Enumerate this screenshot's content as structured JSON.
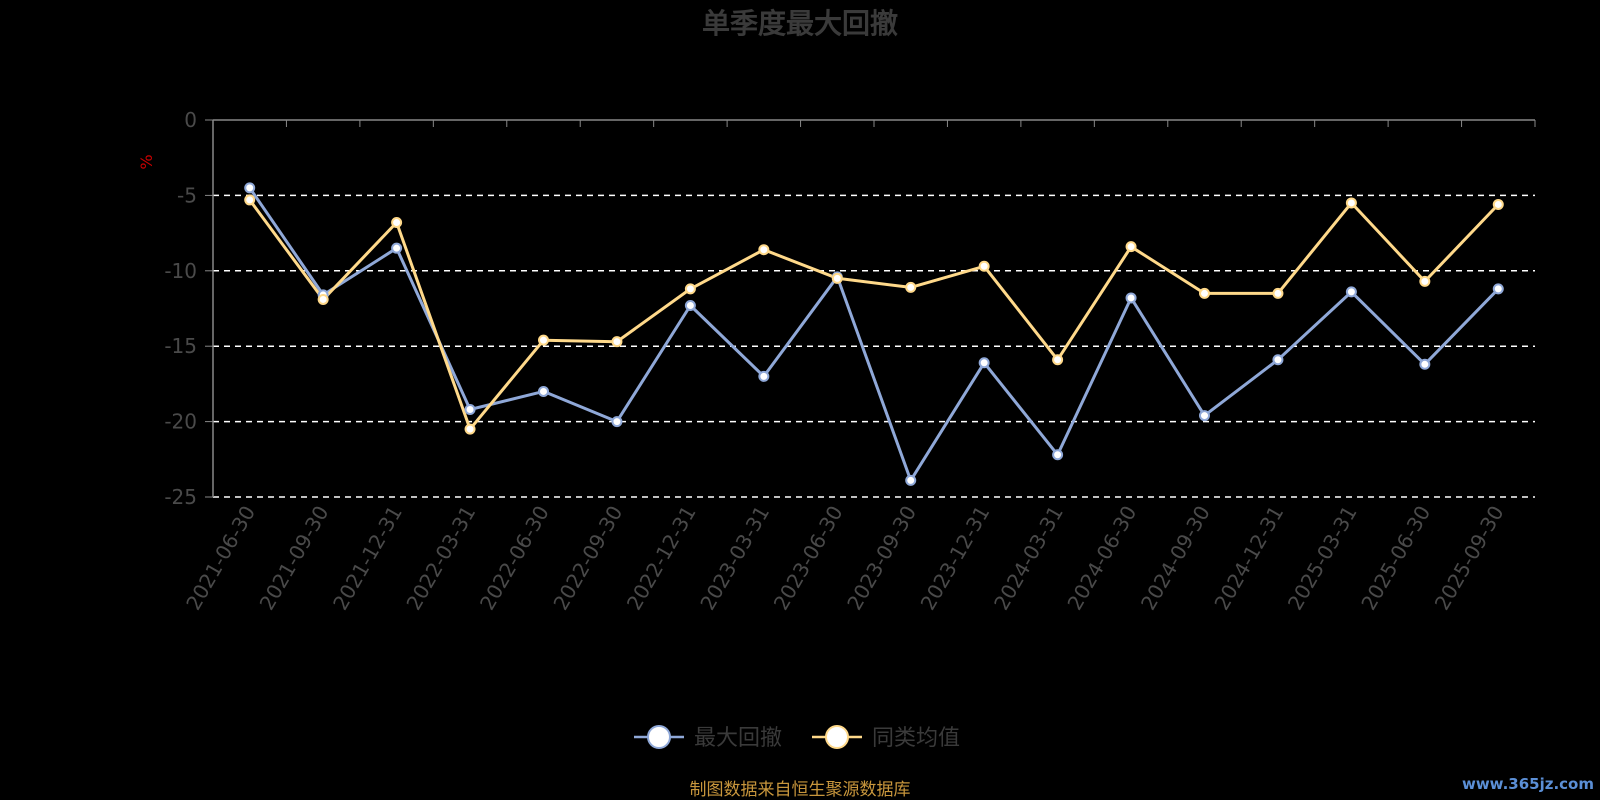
{
  "chart_data": {
    "type": "line",
    "title": "单季度最大回撤",
    "ylabel": "%",
    "xlabel": "",
    "ylim": [
      -25,
      0
    ],
    "yticks": [
      0,
      -5,
      -10,
      -15,
      -20,
      -25
    ],
    "grid": true,
    "legend_position": "bottom",
    "categories": [
      "2021-06-30",
      "2021-09-30",
      "2021-12-31",
      "2022-03-31",
      "2022-06-30",
      "2022-09-30",
      "2022-12-31",
      "2023-03-31",
      "2023-06-30",
      "2023-09-30",
      "2023-12-31",
      "2024-03-31",
      "2024-06-30",
      "2024-09-30",
      "2024-12-31",
      "2025-03-31",
      "2025-06-30",
      "2025-09-30"
    ],
    "series": [
      {
        "name": "最大回撤",
        "color": "#8fa8d8",
        "values": [
          -4.5,
          -11.6,
          -8.5,
          -19.2,
          -18.0,
          -20.0,
          -12.3,
          -17.0,
          -10.4,
          -23.9,
          -16.1,
          -22.2,
          -11.8,
          -19.6,
          -15.9,
          -11.4,
          -16.2,
          -11.2
        ]
      },
      {
        "name": "同类均值",
        "color": "#ffd98a",
        "values": [
          -5.3,
          -11.9,
          -6.8,
          -20.5,
          -14.6,
          -14.7,
          -11.2,
          -8.6,
          -10.5,
          -11.1,
          -9.7,
          -15.9,
          -8.4,
          -11.5,
          -11.5,
          -5.5,
          -10.7,
          -5.6
        ]
      }
    ]
  },
  "footer": {
    "source": "制图数据来自恒生聚源数据库",
    "watermark": "www.365jz.com"
  },
  "colors": {
    "background": "#000000",
    "axis": "#888888",
    "grid": "#ffffff",
    "unit": "#cc0000",
    "source": "#c8963c"
  }
}
